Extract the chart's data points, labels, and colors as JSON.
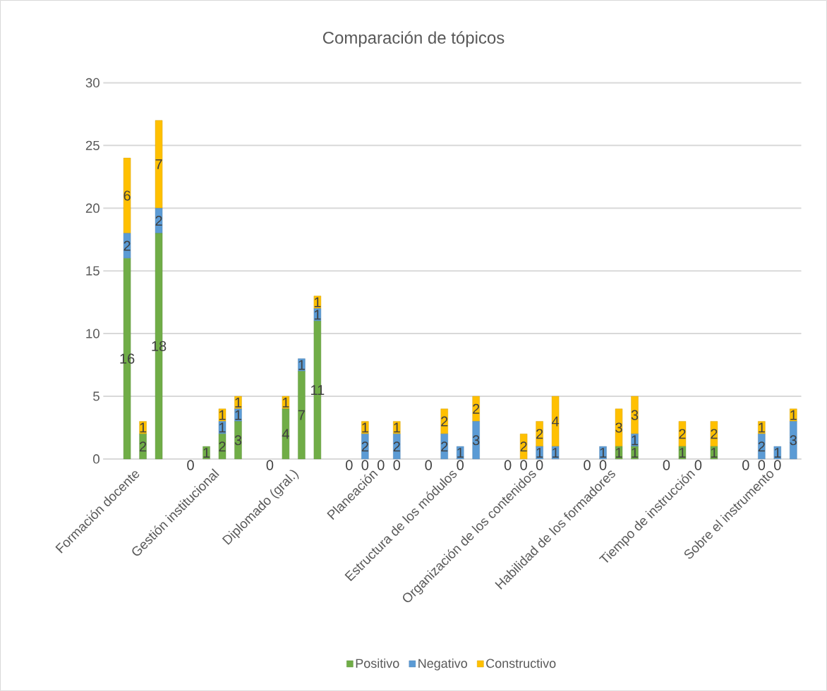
{
  "chart_data": {
    "type": "bar",
    "stacked": true,
    "title": "Comparación de tópicos",
    "categories": [
      null,
      "Formación docente",
      null,
      null,
      null,
      null,
      "Gestión institucional",
      null,
      null,
      null,
      null,
      "Diplomado (gral.)",
      null,
      null,
      null,
      null,
      "Planeación",
      null,
      null,
      null,
      null,
      "Estructura de los módulos",
      null,
      null,
      null,
      null,
      "Organización de los contenidos",
      null,
      null,
      null,
      null,
      "Habilidad de los formadores",
      null,
      null,
      null,
      null,
      "Tiempo de instrucción",
      null,
      null,
      null,
      null,
      "Sobre el instrumento",
      null,
      null
    ],
    "series": [
      {
        "name": "Positivo",
        "color": "#70ad47",
        "values": [
          null,
          16,
          2,
          18,
          null,
          0,
          1,
          2,
          3,
          null,
          0,
          4,
          7,
          11,
          null,
          0,
          0,
          0,
          0,
          null,
          0,
          0,
          0,
          0,
          null,
          0,
          0,
          0,
          0,
          null,
          0,
          0,
          1,
          1,
          null,
          0,
          1,
          0,
          1,
          null,
          0,
          0,
          0,
          0
        ],
        "value_labels": [
          null,
          "16",
          "2",
          "18",
          null,
          "0",
          "1",
          "2",
          "3",
          null,
          "0",
          "4",
          "7",
          "11",
          null,
          "0",
          "0",
          "0",
          "0",
          null,
          "0",
          null,
          "0",
          null,
          null,
          "0",
          "0",
          "0",
          null,
          null,
          "0",
          "0",
          "1",
          "1",
          null,
          "0",
          "1",
          "0",
          "1",
          null,
          "0",
          "0",
          "0",
          null
        ]
      },
      {
        "name": "Negativo",
        "color": "#5b9bd5",
        "values": [
          null,
          2,
          0,
          2,
          null,
          0,
          0,
          1,
          1,
          null,
          0,
          0,
          1,
          1,
          null,
          0,
          2,
          0,
          2,
          null,
          0,
          2,
          1,
          3,
          null,
          0,
          0,
          1,
          1,
          null,
          0,
          1,
          0,
          1,
          null,
          0,
          0,
          0,
          0,
          null,
          0,
          2,
          1,
          3
        ],
        "value_labels": [
          null,
          "2",
          null,
          "2",
          null,
          null,
          null,
          "1",
          "1",
          null,
          null,
          null,
          "1",
          "1",
          null,
          null,
          "2",
          null,
          "2",
          null,
          null,
          "2",
          "1",
          "3",
          null,
          null,
          null,
          "1",
          "1",
          null,
          null,
          "1",
          null,
          "1",
          null,
          null,
          null,
          null,
          null,
          null,
          null,
          "2",
          "1",
          "3"
        ]
      },
      {
        "name": "Constructivo",
        "color": "#ffc000",
        "values": [
          null,
          6,
          1,
          7,
          null,
          0,
          0,
          1,
          1,
          null,
          0,
          1,
          0,
          1,
          null,
          0,
          1,
          0,
          1,
          null,
          0,
          2,
          0,
          2,
          null,
          0,
          2,
          2,
          4,
          null,
          0,
          0,
          3,
          3,
          null,
          0,
          2,
          0,
          2,
          null,
          0,
          1,
          0,
          1
        ],
        "value_labels": [
          null,
          "6",
          "1",
          "7",
          null,
          null,
          null,
          "1",
          "1",
          null,
          null,
          "1",
          null,
          "1",
          null,
          null,
          "1",
          null,
          "1",
          null,
          null,
          "2",
          null,
          "2",
          null,
          null,
          "2",
          "2",
          "4",
          null,
          null,
          null,
          "3",
          "3",
          null,
          null,
          "2",
          null,
          "2",
          null,
          null,
          "1",
          null,
          "1"
        ]
      }
    ],
    "ylim": [
      0,
      30
    ],
    "yticks": [
      0,
      5,
      10,
      15,
      20,
      25,
      30
    ],
    "grid": "y",
    "legend": "bottom"
  }
}
